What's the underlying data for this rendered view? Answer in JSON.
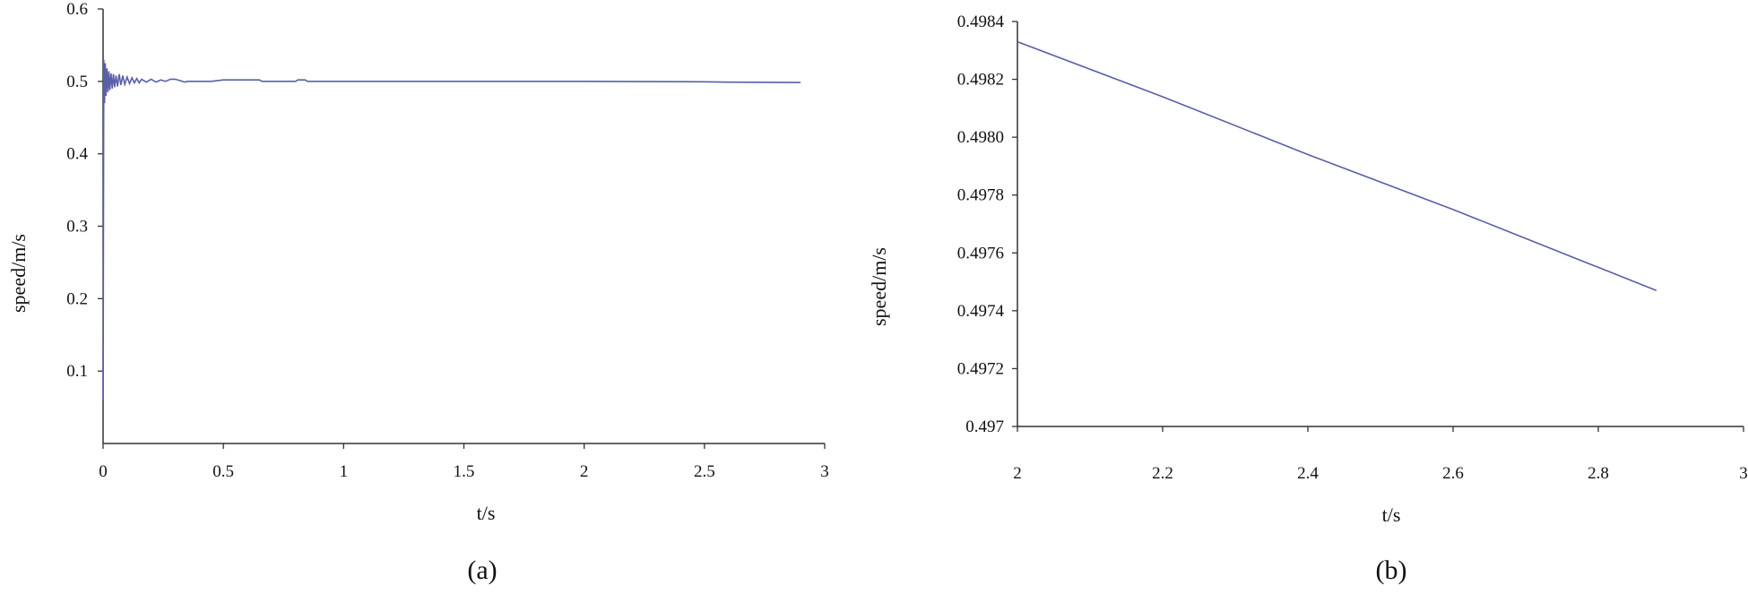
{
  "chart_data": [
    {
      "type": "line",
      "caption": "(a)",
      "xlabel": "t/s",
      "ylabel": "speed/m/s",
      "xlim": [
        0,
        3
      ],
      "ylim": [
        0,
        0.6
      ],
      "xticks": [
        "0",
        "0.5",
        "1",
        "1.5",
        "2",
        "2.5",
        "3"
      ],
      "yticks": [
        "0.1",
        "0.2",
        "0.3",
        "0.4",
        "0.5",
        "0.6"
      ],
      "xtick_values": [
        0,
        0.5,
        1,
        1.5,
        2,
        2.5,
        3
      ],
      "ytick_values": [
        0.1,
        0.2,
        0.3,
        0.4,
        0.5,
        0.6
      ],
      "line_color": "#5a5fa8",
      "series": [
        {
          "x": [
            0,
            0.003,
            0.006,
            0.009,
            0.012,
            0.016,
            0.02,
            0.024,
            0.028,
            0.033,
            0.038,
            0.043,
            0.048,
            0.054,
            0.06,
            0.067,
            0.074,
            0.082,
            0.09,
            0.1,
            0.11,
            0.12,
            0.13,
            0.14,
            0.15,
            0.16,
            0.18,
            0.2,
            0.22,
            0.24,
            0.26,
            0.28,
            0.3,
            0.32,
            0.34,
            0.35,
            0.4,
            0.45,
            0.5,
            0.55,
            0.6,
            0.65,
            0.66,
            0.8,
            0.81,
            0.84,
            0.85,
            1.0,
            1.5,
            2.0,
            2.5,
            2.6,
            2.9
          ],
          "y": [
            0.06,
            0.53,
            0.47,
            0.525,
            0.48,
            0.518,
            0.485,
            0.514,
            0.488,
            0.511,
            0.49,
            0.51,
            0.492,
            0.508,
            0.493,
            0.51,
            0.495,
            0.508,
            0.496,
            0.506,
            0.497,
            0.505,
            0.498,
            0.504,
            0.498,
            0.503,
            0.499,
            0.503,
            0.499,
            0.502,
            0.5,
            0.503,
            0.503,
            0.501,
            0.499,
            0.5,
            0.5,
            0.5,
            0.502,
            0.502,
            0.502,
            0.502,
            0.5,
            0.5,
            0.502,
            0.502,
            0.5,
            0.5,
            0.5,
            0.5,
            0.4994,
            0.499,
            0.4985
          ]
        }
      ]
    },
    {
      "type": "line",
      "caption": "(b)",
      "xlabel": "t/s",
      "ylabel": "speed/m/s",
      "xlim": [
        2,
        3
      ],
      "ylim": [
        0.497,
        0.4984
      ],
      "xticks": [
        "2",
        "2.2",
        "2.4",
        "2.6",
        "2.8",
        "3"
      ],
      "yticks": [
        "0.497",
        "0.4972",
        "0.4974",
        "0.4976",
        "0.4978",
        "0.4980",
        "0.4982",
        "0.4984"
      ],
      "xtick_values": [
        2,
        2.2,
        2.4,
        2.6,
        2.8,
        3
      ],
      "ytick_values": [
        0.497,
        0.4972,
        0.4974,
        0.4976,
        0.4978,
        0.498,
        0.4982,
        0.4984
      ],
      "line_color": "#5a5fa8",
      "series": [
        {
          "x": [
            2.0,
            2.2,
            2.4,
            2.6,
            2.8,
            2.88
          ],
          "y": [
            0.49833,
            0.49814,
            0.49794,
            0.49775,
            0.49755,
            0.49747
          ]
        }
      ]
    }
  ]
}
